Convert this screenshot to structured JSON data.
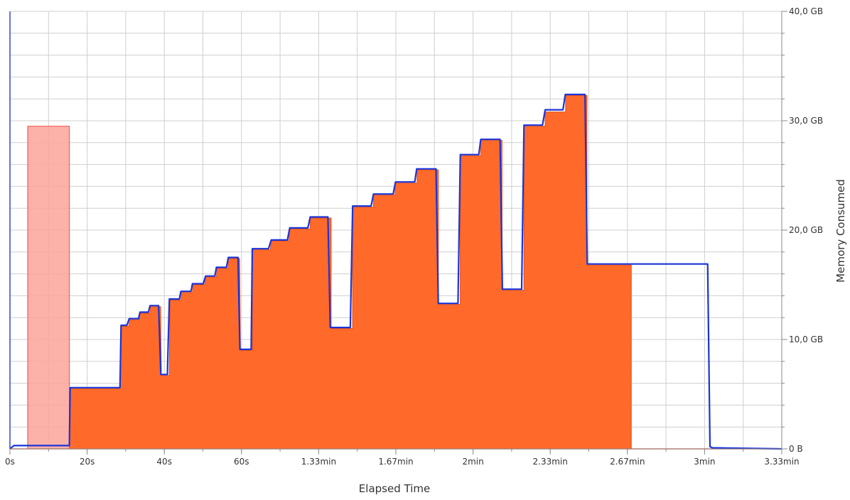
{
  "chart_data": {
    "type": "area",
    "xlabel": "Elapsed Time",
    "ylabel": "Memory Consumed",
    "xunit": "seconds",
    "yunit": "GB",
    "xlim": [
      0,
      200
    ],
    "ylim": [
      0,
      40
    ],
    "grid": true,
    "legend": "none",
    "x_ticks": [
      {
        "value": 0,
        "label": "0s"
      },
      {
        "value": 20,
        "label": "20s"
      },
      {
        "value": 40,
        "label": "40s"
      },
      {
        "value": 60,
        "label": "60s"
      },
      {
        "value": 80,
        "label": "1.33min"
      },
      {
        "value": 100,
        "label": "1.67min"
      },
      {
        "value": 120,
        "label": "2min"
      },
      {
        "value": 140,
        "label": "2.33min"
      },
      {
        "value": 160,
        "label": "2.67min"
      },
      {
        "value": 180,
        "label": "3min"
      },
      {
        "value": 200,
        "label": "3.33min"
      }
    ],
    "y_ticks": [
      {
        "value": 0,
        "label": "0 B"
      },
      {
        "value": 10,
        "label": "10,0 GB"
      },
      {
        "value": 20,
        "label": "20,0 GB"
      },
      {
        "value": 30,
        "label": "30,0 GB"
      },
      {
        "value": 40,
        "label": "40,0 GB"
      }
    ],
    "series": [
      {
        "color": "#fca39a",
        "style": "light-area",
        "x": [
          0,
          4.6,
          4.6,
          15.4,
          15.4,
          200
        ],
        "y": [
          0,
          0,
          29.5,
          29.5,
          0,
          0
        ]
      },
      {
        "color": "#ff6a2a",
        "style": "area",
        "x": [
          0,
          1,
          15.4,
          15.6,
          28.5,
          28.7,
          30.8,
          31,
          33.5,
          33.7,
          36.3,
          36.5,
          39,
          39.2,
          41.3,
          41.5,
          44.3,
          44.5,
          47.3,
          47.5,
          50.5,
          50.7,
          53.5,
          53.7,
          56.5,
          56.7,
          59.5,
          59.7,
          62.8,
          62.8,
          67.5,
          67.7,
          72.3,
          72.5,
          77.8,
          77.8,
          83.2,
          83.2,
          88.8,
          88.8,
          94.2,
          94.2,
          99.8,
          99.8,
          105.5,
          105.5,
          111,
          111,
          116.7,
          116.7,
          122,
          122,
          127.5,
          127.5,
          133.2,
          133.2,
          138.7,
          138.7,
          144,
          144,
          149.5,
          149.5,
          155,
          155,
          161,
          161,
          167,
          167,
          181.3,
          181.5,
          182,
          200
        ],
        "y": [
          0,
          0,
          0,
          5.5,
          5.5,
          11.2,
          11.2,
          11.8,
          11.8,
          12.4,
          12.4,
          13,
          13,
          6.7,
          6.7,
          13.6,
          13.6,
          14.3,
          14.3,
          15,
          15,
          15.7,
          15.7,
          16.5,
          16.5,
          17.4,
          17.4,
          9,
          9,
          18.2,
          18.2,
          19,
          19,
          20.1,
          20.1,
          21.1,
          21.1,
          11,
          11,
          22.1,
          22.1,
          23.2,
          23.2,
          24.3,
          24.3,
          25.5,
          25.5,
          13.2,
          13.2,
          26.8,
          26.8,
          28.2,
          28.2,
          14.5,
          14.5,
          29.5,
          29.5,
          30.8,
          30.8,
          32.3,
          32.3,
          16.8,
          16.8,
          16.8,
          16.8,
          0,
          0,
          0,
          0,
          0,
          0,
          0
        ]
      },
      {
        "color": "#1a34d8",
        "style": "line",
        "x": [
          0,
          1,
          4.5,
          15.4,
          15.6,
          28.5,
          28.8,
          30.3,
          30.9,
          33.3,
          33.7,
          35.9,
          36.3,
          38.5,
          39.1,
          40.8,
          41.3,
          43.9,
          44.3,
          46.9,
          47.3,
          50.1,
          50.7,
          53.1,
          53.5,
          56.1,
          56.6,
          59.1,
          59.6,
          62.5,
          62.8,
          67,
          67.7,
          71.9,
          72.5,
          77.2,
          77.8,
          82.4,
          83,
          88.2,
          88.8,
          93.6,
          94.2,
          99.3,
          99.9,
          104.9,
          105.4,
          110.4,
          111,
          116.1,
          116.7,
          121.5,
          122,
          127,
          127.6,
          132.6,
          133.2,
          138,
          138.7,
          143.3,
          143.9,
          149,
          149.6,
          155,
          155.6,
          161,
          161.6,
          166.9,
          167,
          180.8,
          181.4,
          182,
          200
        ],
        "y": [
          0,
          0.3,
          0.3,
          0.3,
          5.6,
          5.6,
          11.3,
          11.3,
          11.9,
          11.9,
          12.5,
          12.5,
          13.1,
          13.1,
          6.8,
          6.8,
          13.7,
          13.7,
          14.4,
          14.4,
          15.1,
          15.1,
          15.8,
          15.8,
          16.6,
          16.6,
          17.5,
          17.5,
          9.1,
          9.1,
          18.3,
          18.3,
          19.1,
          19.1,
          20.2,
          20.2,
          21.2,
          21.2,
          11.1,
          11.1,
          22.2,
          22.2,
          23.3,
          23.3,
          24.4,
          24.4,
          25.6,
          25.6,
          13.3,
          13.3,
          26.9,
          26.9,
          28.3,
          28.3,
          14.6,
          14.6,
          29.6,
          29.6,
          31,
          31,
          32.4,
          32.4,
          16.9,
          16.9,
          16.9,
          16.9,
          16.9,
          16.9,
          16.9,
          16.9,
          0.2,
          0.1,
          0
        ]
      }
    ]
  }
}
